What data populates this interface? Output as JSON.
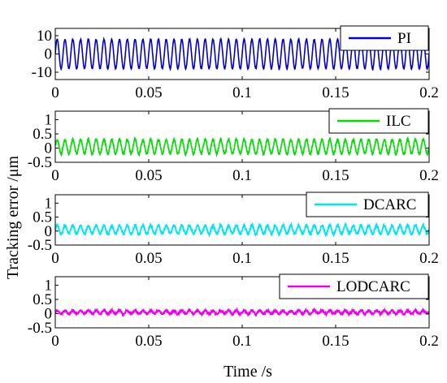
{
  "chart_data": {
    "type": "line",
    "ylabel": "Tracking error /μm",
    "xlabel": "Time /s",
    "xlim": [
      0,
      0.2
    ],
    "xticks": [
      0,
      0.05,
      0.1,
      0.15,
      0.2
    ],
    "xtick_labels": [
      "0",
      "0.05",
      "0.1",
      "0.15",
      "0.2"
    ],
    "panels": [
      {
        "series_name": "PI",
        "color": "#0000cc",
        "ylim": [
          -14,
          14
        ],
        "yticks": [
          -10,
          0,
          10
        ],
        "ytick_labels": [
          "-10",
          "0",
          "10"
        ],
        "amplitude": 8,
        "offset": 0,
        "cycles": 48,
        "noise": 0.3,
        "x_ticklabels_shown": true
      },
      {
        "series_name": "ILC",
        "color": "#00dd00",
        "ylim": [
          -0.5,
          1.3
        ],
        "yticks": [
          -0.5,
          0,
          0.5,
          1
        ],
        "ytick_labels": [
          "-0.5",
          "0",
          "0.5",
          "1"
        ],
        "amplitude": 0.25,
        "offset": 0.05,
        "cycles": 48,
        "noise": 0.05,
        "x_ticklabels_shown": true
      },
      {
        "series_name": "DCARC",
        "color": "#00e5ee",
        "ylim": [
          -0.5,
          1.3
        ],
        "yticks": [
          -0.5,
          0,
          0.5,
          1
        ],
        "ytick_labels": [
          "-0.5",
          "0",
          "0.5",
          "1"
        ],
        "amplitude": 0.15,
        "offset": 0.05,
        "cycles": 48,
        "noise": 0.06,
        "x_ticklabels_shown": true
      },
      {
        "series_name": "LODCARC",
        "color": "#ee00ee",
        "ylim": [
          -0.5,
          1.3
        ],
        "yticks": [
          -0.5,
          0,
          0.5,
          1
        ],
        "ytick_labels": [
          "-0.5",
          "0",
          "0.5",
          "1"
        ],
        "amplitude": 0.06,
        "offset": 0.05,
        "cycles": 48,
        "noise": 0.05,
        "x_ticklabels_shown": true
      }
    ]
  }
}
